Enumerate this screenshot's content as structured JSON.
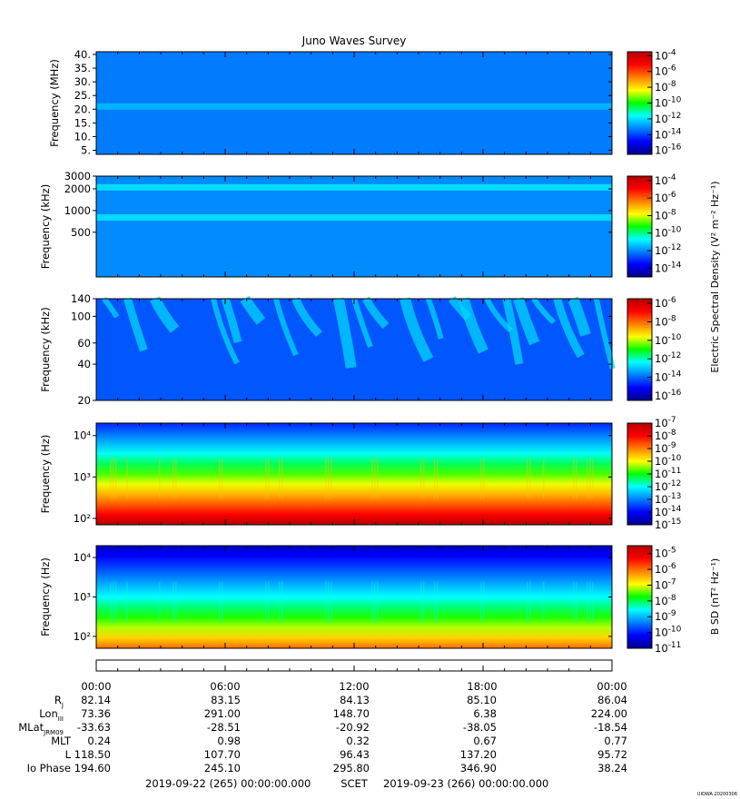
{
  "title": "Juno Waves Survey",
  "colorbar_label_e": "Electric Spectral Density (V² m⁻² Hz⁻¹)",
  "colorbar_label_b": "B SD (nT² Hz⁻¹)",
  "credit": "UIOWA 20200306",
  "chart_data": [
    {
      "type": "heatmap",
      "name": "panel-1",
      "ylabel": "Frequency (MHz)",
      "yscale": "linear",
      "ylim": [
        3.5,
        41
      ],
      "yticks": [
        "40.",
        "35.",
        "30.",
        "25.",
        "20.",
        "15.",
        "10.",
        "5."
      ],
      "ytick_values": [
        40,
        35,
        30,
        25,
        20,
        15,
        10,
        5
      ],
      "colorbar_ticks": [
        "-4",
        "-6",
        "-8",
        "-10",
        "-12",
        "-14",
        "-16"
      ],
      "colorbar_range_exp": [
        -16.5,
        -3.5
      ],
      "features": [
        {
          "type": "band",
          "freq": 21,
          "level_exp": -12.5
        },
        {
          "type": "background",
          "level_exp": -13.3
        }
      ]
    },
    {
      "type": "heatmap",
      "name": "panel-2",
      "ylabel": "Frequency (kHz)",
      "yscale": "log",
      "ylim": [
        120,
        3000
      ],
      "yticks": [
        "3000",
        "2000",
        "1000",
        "500"
      ],
      "ytick_values": [
        3000,
        2000,
        1000,
        500
      ],
      "colorbar_ticks": [
        "-4",
        "-6",
        "-8",
        "-10",
        "-12",
        "-14"
      ],
      "colorbar_range_exp": [
        -15,
        -3.5
      ],
      "features": [
        {
          "type": "band",
          "freq": 2100,
          "level_exp": -11
        },
        {
          "type": "band",
          "freq": 800,
          "level_exp": -11
        },
        {
          "type": "background",
          "level_exp": -12
        }
      ]
    },
    {
      "type": "heatmap",
      "name": "panel-3",
      "ylabel": "Frequency (kHz)",
      "yscale": "log",
      "ylim": [
        20,
        140
      ],
      "yticks": [
        "140",
        "100",
        "60",
        "40",
        "20"
      ],
      "ytick_values": [
        140,
        100,
        60,
        40,
        20
      ],
      "colorbar_ticks": [
        "-6",
        "-8",
        "-10",
        "-12",
        "-14",
        "-16"
      ],
      "colorbar_range_exp": [
        -16.5,
        -5.5
      ],
      "features": [
        {
          "type": "background",
          "level_exp": -14.2
        },
        {
          "type": "emission-streaks",
          "level_exp": -12.8
        }
      ]
    },
    {
      "type": "heatmap",
      "name": "panel-4",
      "ylabel": "Frequency (Hz)",
      "yscale": "log",
      "ylim": [
        70,
        20000
      ],
      "yticks": [
        "10⁴",
        "10³",
        "10²"
      ],
      "ytick_values": [
        10000,
        1000,
        100
      ],
      "colorbar_ticks": [
        "-7",
        "-8",
        "-9",
        "-10",
        "-11",
        "-12",
        "-13",
        "-14",
        "-15"
      ],
      "colorbar_range_exp": [
        -15,
        -7
      ],
      "features": [
        {
          "type": "gradient",
          "level_exp_low": -7,
          "level_exp_high": -13.7
        }
      ]
    },
    {
      "type": "heatmap",
      "name": "panel-5",
      "ylabel": "Frequency (Hz)",
      "yscale": "log",
      "ylim": [
        50,
        20000
      ],
      "yticks": [
        "10⁴",
        "10³",
        "10²"
      ],
      "ytick_values": [
        10000,
        1000,
        100
      ],
      "colorbar_ticks": [
        "-5",
        "-6",
        "-7",
        "-8",
        "-9",
        "-10",
        "-11"
      ],
      "colorbar_range_exp": [
        -11,
        -4.5
      ],
      "features": [
        {
          "type": "gradient",
          "level_exp_low": -6,
          "level_exp_high": -10.6
        }
      ]
    }
  ],
  "ephemeris": {
    "times": [
      "00:00",
      "06:00",
      "12:00",
      "18:00",
      "00:00"
    ],
    "rows": [
      {
        "label": "R",
        "sub": "J",
        "values": [
          "82.14",
          "83.15",
          "84.13",
          "85.10",
          "86.04"
        ]
      },
      {
        "label": "Lon",
        "sub": "III",
        "values": [
          "73.36",
          "291.00",
          "148.70",
          "6.38",
          "224.00"
        ]
      },
      {
        "label": "MLat",
        "sub": "JRM09",
        "values": [
          "-33.63",
          "-28.51",
          "-20.92",
          "-38.05",
          "-18.54"
        ]
      },
      {
        "label": "MLT",
        "sub": "",
        "values": [
          "0.24",
          "0.98",
          "0.32",
          "0.67",
          "0.77"
        ]
      },
      {
        "label": "L",
        "sub": "",
        "values": [
          "118.50",
          "107.70",
          "96.43",
          "137.20",
          "95.72"
        ]
      },
      {
        "label": "Io Phase",
        "sub": "",
        "values": [
          "194.60",
          "245.10",
          "295.80",
          "346.90",
          "38.24"
        ]
      }
    ],
    "start_label": "2019-09-22 (265) 00:00:00.000",
    "scet_label": "SCET",
    "end_label": "2019-09-23 (266) 00:00:00.000"
  }
}
